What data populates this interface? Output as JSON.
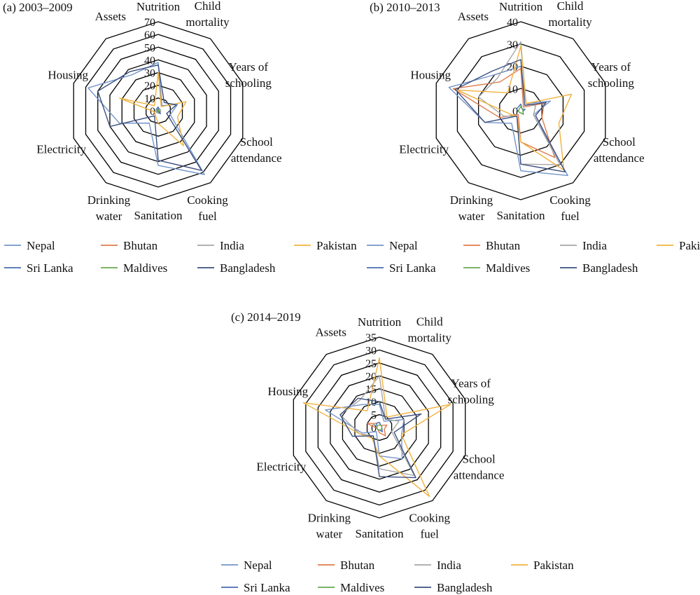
{
  "series_names": [
    "Nepal",
    "Bhutan",
    "India",
    "Pakistan",
    "Sri Lanka",
    "Maldives",
    "Bangladesh"
  ],
  "series_colors": [
    "#7294c9",
    "#e07b4a",
    "#a6a6a6",
    "#f0b23f",
    "#4a6bb0",
    "#6aa84f",
    "#3c4f80"
  ],
  "chart_data": [
    {
      "type": "radar",
      "title": "(a) 2003–2009",
      "axes": [
        "Nutrition",
        "Child mortality",
        "Years of schooling",
        "School attendance",
        "Cooking fuel",
        "Sanitation",
        "Drinking water",
        "Electricity",
        "Housing",
        "Assets"
      ],
      "axis_labels": [
        [
          "Nutrition"
        ],
        [
          "Child",
          "mortality"
        ],
        [
          "Years of",
          "schooling"
        ],
        [
          "School",
          "attendance"
        ],
        [
          "Cooking",
          "fuel"
        ],
        [
          "Sanitation"
        ],
        [
          "Drinking",
          "water"
        ],
        [
          "Electricity"
        ],
        [
          "Housing"
        ],
        [
          "Assets"
        ]
      ],
      "rmax": 70,
      "ticks": [
        0,
        10,
        20,
        30,
        40,
        50,
        60,
        70
      ],
      "tick_labels": [
        "0",
        "10",
        "20",
        "30",
        "40",
        "50",
        "60",
        "70"
      ],
      "series": [
        {
          "name": "Nepal",
          "values": [
            38,
            5,
            16,
            10,
            62,
            43,
            12,
            32,
            58,
            35
          ]
        },
        {
          "name": "Bhutan",
          "values": [
            0,
            0,
            0,
            0,
            0,
            0,
            0,
            0,
            0,
            0
          ]
        },
        {
          "name": "India",
          "values": [
            2,
            2,
            2,
            2,
            2,
            2,
            2,
            2,
            2,
            2
          ]
        },
        {
          "name": "Pakistan",
          "values": [
            30,
            4,
            23,
            16,
            34,
            10,
            4,
            3,
            32,
            5
          ]
        },
        {
          "name": "Sri Lanka",
          "values": [
            3,
            1,
            1,
            1,
            3,
            1,
            1,
            1,
            1,
            2
          ]
        },
        {
          "name": "Maldives",
          "values": [
            1,
            0,
            1,
            0,
            1,
            1,
            0,
            0,
            1,
            1
          ]
        },
        {
          "name": "Bangladesh",
          "values": [
            36,
            8,
            15,
            7,
            58,
            39,
            5,
            40,
            50,
            38
          ]
        }
      ]
    },
    {
      "type": "radar",
      "title": "(b) 2010–2013",
      "axes": [
        "Nutrition",
        "Child mortality",
        "Years of schooling",
        "School attendance",
        "Cooking fuel",
        "Sanitation",
        "Drinking water",
        "Electricity",
        "Housing",
        "Assets"
      ],
      "axis_labels": [
        [
          "Nutrition"
        ],
        [
          "Child",
          "mortality"
        ],
        [
          "Years of",
          "schooling"
        ],
        [
          "School",
          "attendance"
        ],
        [
          "Cooking",
          "fuel"
        ],
        [
          "Sanitation"
        ],
        [
          "Drinking",
          "water"
        ],
        [
          "Electricity"
        ],
        [
          "Housing"
        ],
        [
          "Assets"
        ]
      ],
      "rmax": 40,
      "ticks": [
        0,
        10,
        20,
        30,
        40
      ],
      "tick_labels": [
        "0",
        "10",
        "20",
        "30",
        "40"
      ],
      "series": [
        {
          "name": "Nepal",
          "values": [
            20,
            4,
            14,
            6,
            36,
            27,
            7,
            17,
            34,
            20
          ]
        },
        {
          "name": "Bhutan",
          "values": [
            19,
            2,
            11,
            10,
            26,
            14,
            2,
            10,
            32,
            16
          ]
        },
        {
          "name": "India",
          "values": [
            31,
            4,
            7,
            6,
            30,
            24,
            3,
            8,
            20,
            18
          ]
        },
        {
          "name": "Pakistan",
          "values": [
            29,
            4,
            24,
            18,
            33,
            14,
            3,
            5,
            30,
            10
          ]
        },
        {
          "name": "Sri Lanka",
          "values": [
            3,
            1,
            2,
            1,
            2,
            1,
            1,
            1,
            2,
            2
          ]
        },
        {
          "name": "Maldives",
          "values": [
            2,
            1,
            1,
            1,
            2,
            1,
            1,
            1,
            1,
            1
          ]
        },
        {
          "name": "Bangladesh",
          "values": [
            23,
            3,
            12,
            7,
            34,
            24,
            3,
            17,
            31,
            22
          ]
        }
      ]
    },
    {
      "type": "radar",
      "title": "(c) 2014–2019",
      "axes": [
        "Nutrition",
        "Child mortality",
        "Years of schooling",
        "School attendance",
        "Cooking fuel",
        "Sanitation",
        "Drinking water",
        "Electricity",
        "Housing",
        "Assets"
      ],
      "axis_labels": [
        [
          "Nutrition"
        ],
        [
          "Child",
          "mortality"
        ],
        [
          "Years of",
          "schooling"
        ],
        [
          "School",
          "attendance"
        ],
        [
          "Cooking",
          "fuel"
        ],
        [
          "Sanitation"
        ],
        [
          "Drinking",
          "water"
        ],
        [
          "Electricity"
        ],
        [
          "Housing"
        ],
        [
          "Assets"
        ]
      ],
      "rmax": 35,
      "ticks": [
        0,
        5,
        10,
        15,
        20,
        25,
        30,
        35
      ],
      "tick_labels": [
        "0",
        "5",
        "10",
        "15",
        "20",
        "25",
        "30",
        "35"
      ],
      "series": [
        {
          "name": "Nepal",
          "values": [
            9,
            3,
            10,
            9,
            15,
            11,
            2,
            7,
            22,
            11
          ]
        },
        {
          "name": "Bhutan",
          "values": [
            2,
            1,
            3,
            2,
            4,
            2,
            1,
            1,
            5,
            2
          ]
        },
        {
          "name": "India",
          "values": [
            20,
            4,
            8,
            5,
            23,
            16,
            4,
            8,
            16,
            13
          ]
        },
        {
          "name": "Pakistan",
          "values": [
            27,
            5,
            29,
            9,
            33,
            11,
            5,
            8,
            31,
            8
          ]
        },
        {
          "name": "Sri Lanka",
          "values": [
            2,
            1,
            1,
            1,
            2,
            1,
            1,
            1,
            1,
            2
          ]
        },
        {
          "name": "Maldives",
          "values": [
            1,
            1,
            1,
            1,
            1,
            1,
            1,
            1,
            1,
            1
          ]
        },
        {
          "name": "Bangladesh",
          "values": [
            10,
            4,
            17,
            6,
            24,
            19,
            4,
            11,
            16,
            14
          ]
        }
      ]
    }
  ]
}
